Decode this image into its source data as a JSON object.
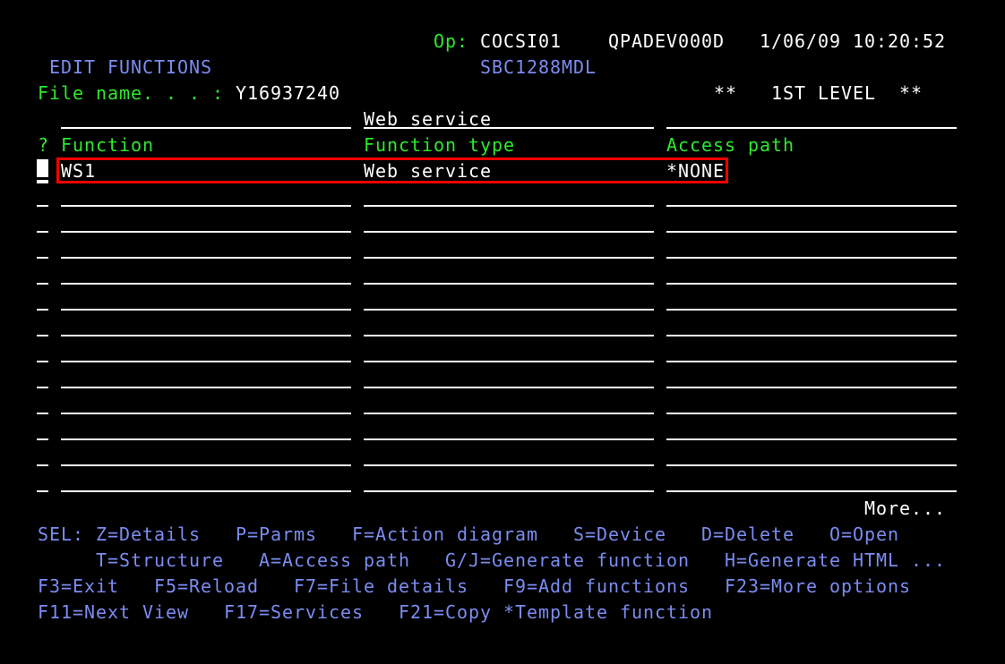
{
  "header": {
    "op_label": "Op:",
    "operator": "COCSI01",
    "device": "QPADEV000D",
    "date": "1/06/09",
    "time": "10:20:52",
    "title": "EDIT FUNCTIONS",
    "model": "SBC1288MDL",
    "file_label": "File name. . . :",
    "file_name": "Y16937240",
    "level_left": "**",
    "level": "1ST LEVEL",
    "level_right": "**"
  },
  "positioner": {
    "function_type": "Web service"
  },
  "columns": {
    "sel": "?",
    "function": "Function",
    "function_type": "Function type",
    "access_path": "Access path"
  },
  "rows": [
    {
      "function": "WS1",
      "function_type": "Web service",
      "access_path": "*NONE"
    }
  ],
  "more": "More...",
  "sel_options": {
    "prefix": "SEL:",
    "line1": [
      "Z=Details",
      "P=Parms",
      "F=Action diagram",
      "S=Device",
      "D=Delete",
      "O=Open"
    ],
    "line2": [
      "T=Structure",
      "A=Access path",
      "G/J=Generate function",
      "H=Generate HTML ..."
    ]
  },
  "function_keys": {
    "line1": [
      "F3=Exit",
      "F5=Reload",
      "F7=File details",
      "F9=Add functions",
      "F23=More options"
    ],
    "line2": [
      "F11=Next View",
      "F17=Services",
      "F21=Copy *Template function"
    ]
  },
  "colors": {
    "label": "#2ee82e",
    "value": "#ffffff",
    "info": "#7b8cf0",
    "highlight": "#ff0000"
  }
}
